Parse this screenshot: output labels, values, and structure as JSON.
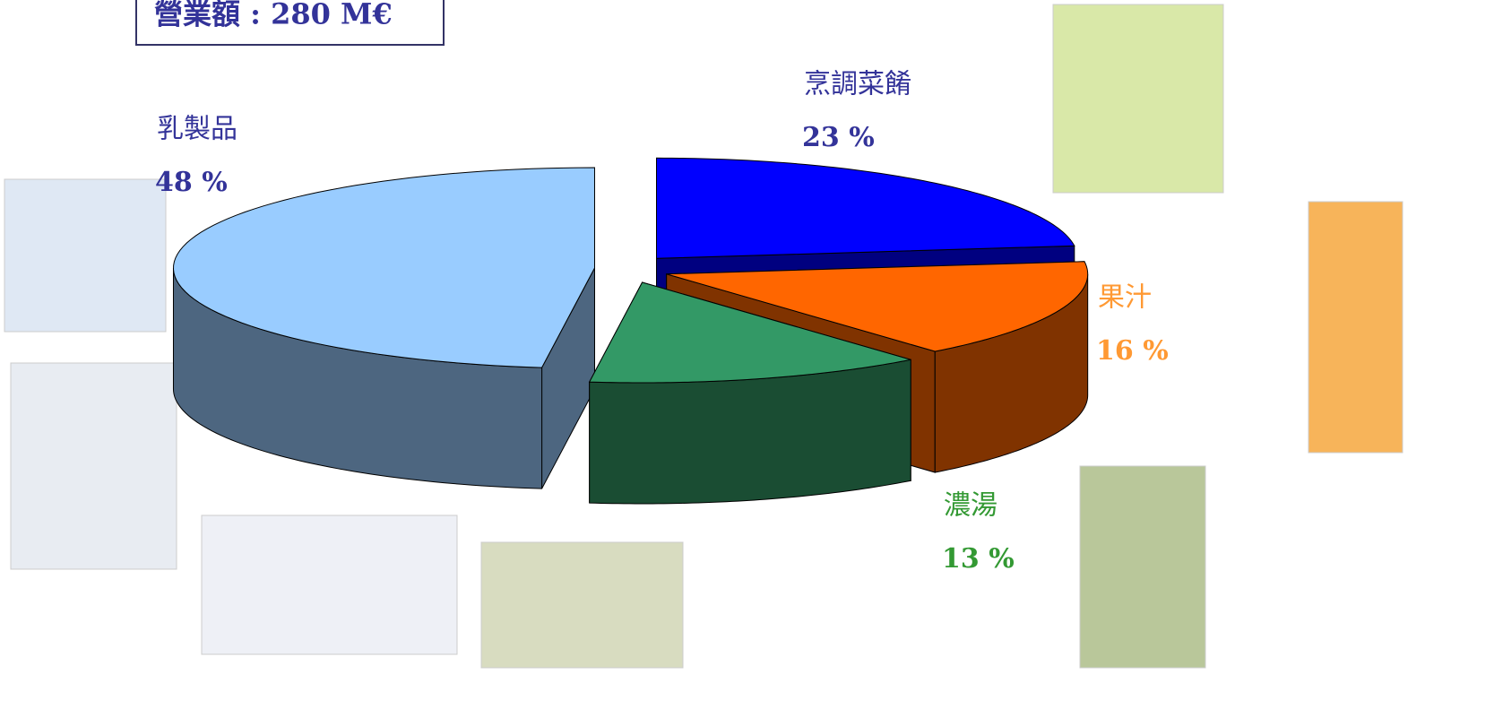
{
  "chart_data": {
    "type": "pie3d",
    "title": "營業額 : 280 M€",
    "categories": [
      "烹調菜餚",
      "果汁",
      "濃湯",
      "乳製品"
    ],
    "values": [
      23,
      16,
      13,
      48
    ],
    "value_labels": [
      "23 %",
      "16 %",
      "13 %",
      "48 %"
    ],
    "colors": [
      "#0000ff",
      "#ff6600",
      "#339966",
      "#99ccff"
    ],
    "label_colors": [
      "#333399",
      "#ff9933",
      "#339933",
      "#333399"
    ]
  }
}
